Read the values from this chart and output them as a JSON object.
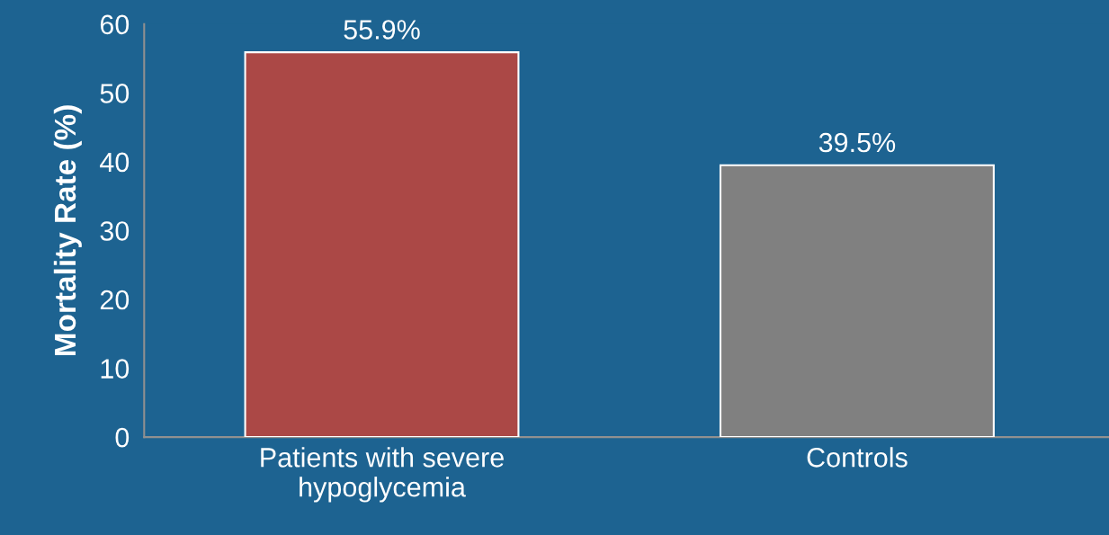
{
  "chart_data": {
    "type": "bar",
    "ylabel": "Mortality Rate (%)",
    "categories": [
      "Patients with severe\nhypoglycemia",
      "Controls"
    ],
    "values": [
      55.9,
      39.5
    ],
    "colors": [
      "#ab4846",
      "#808080"
    ],
    "value_labels": [
      "55.9%",
      "39.5%"
    ],
    "ylim": [
      0,
      60
    ],
    "yticks": [
      0,
      10,
      20,
      30,
      40,
      50,
      60
    ],
    "grid": false,
    "legend": false
  }
}
